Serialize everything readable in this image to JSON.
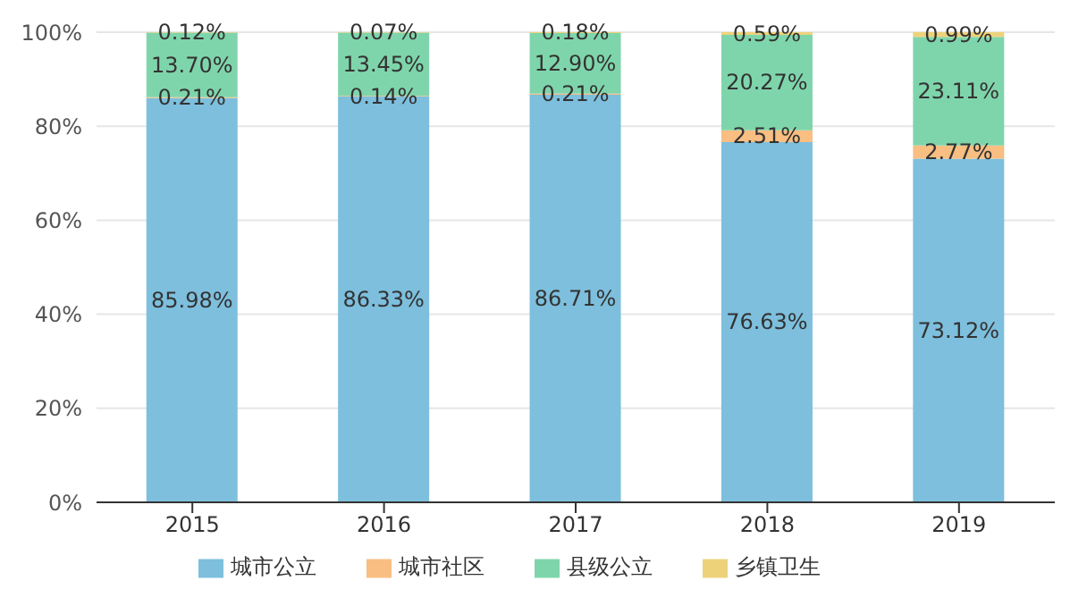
{
  "chart_data": {
    "type": "bar",
    "stacked": true,
    "categories": [
      "2015",
      "2016",
      "2017",
      "2018",
      "2019"
    ],
    "series": [
      {
        "name": "城市公立",
        "color": "#7dbfdd",
        "values": [
          85.98,
          86.33,
          86.71,
          76.63,
          73.12
        ],
        "value_labels": [
          "85.98%",
          "86.33%",
          "86.71%",
          "76.63%",
          "73.12%"
        ]
      },
      {
        "name": "城市社区",
        "color": "#f8be82",
        "values": [
          0.21,
          0.14,
          0.21,
          2.51,
          2.77
        ],
        "value_labels": [
          "0.21%",
          "0.14%",
          "0.21%",
          "2.51%",
          "2.77%"
        ]
      },
      {
        "name": "县级公立",
        "color": "#7fd5ab",
        "values": [
          13.7,
          13.45,
          12.9,
          20.27,
          23.11
        ],
        "value_labels": [
          "13.70%",
          "13.45%",
          "12.90%",
          "20.27%",
          "23.11%"
        ]
      },
      {
        "name": "乡镇卫生",
        "color": "#eed27a",
        "values": [
          0.12,
          0.07,
          0.18,
          0.59,
          0.99
        ],
        "value_labels": [
          "0.12%",
          "0.07%",
          "0.18%",
          "0.59%",
          "0.99%"
        ]
      }
    ],
    "ylim": [
      0,
      100
    ],
    "yticks": [
      {
        "value": 0,
        "label": "0%"
      },
      {
        "value": 20,
        "label": "20%"
      },
      {
        "value": 40,
        "label": "40%"
      },
      {
        "value": 60,
        "label": "60%"
      },
      {
        "value": 80,
        "label": "80%"
      },
      {
        "value": 100,
        "label": "100%"
      }
    ],
    "grid": "y",
    "legend": "bottom"
  }
}
